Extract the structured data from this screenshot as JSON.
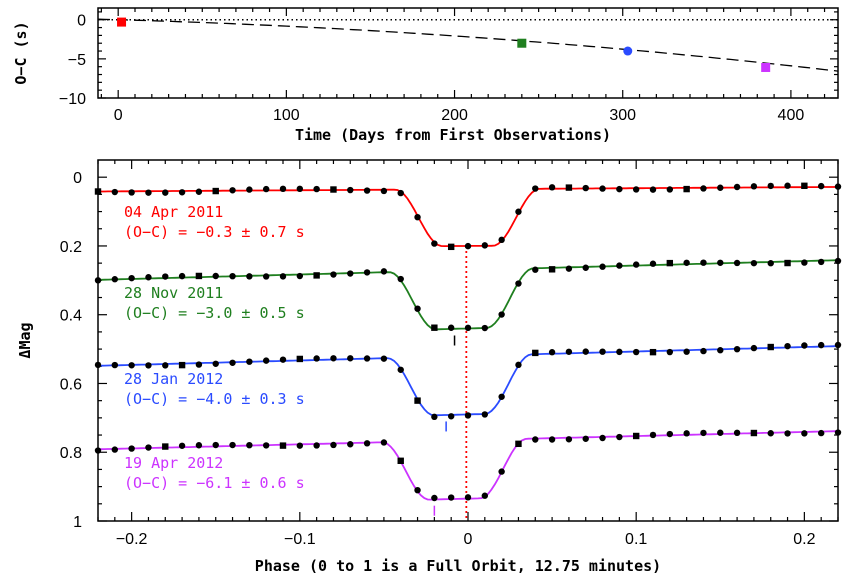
{
  "chart_data": [
    {
      "id": "oc",
      "type": "scatter",
      "xlabel": "Time (Days from First Observations)",
      "ylabel": "O−C (s)",
      "xlim": [
        -12,
        428
      ],
      "ylim": [
        -10,
        1.5
      ],
      "xticks": [
        0,
        100,
        200,
        300,
        400
      ],
      "yticks": [
        0,
        -5,
        -10
      ],
      "xtick_labels": [
        "0",
        "100",
        "200",
        "300",
        "400"
      ],
      "ytick_labels": [
        "0",
        "−5",
        "−10"
      ],
      "zero_line": {
        "y": 0,
        "style": "dotted"
      },
      "trend": {
        "style": "dashed",
        "a": 0.006,
        "b": 2.18e-05
      },
      "points": [
        {
          "x": 2,
          "y": -0.3,
          "color": "#ff0000",
          "marker": "square"
        },
        {
          "x": 240,
          "y": -3.0,
          "color": "#1f7f1f",
          "marker": "square"
        },
        {
          "x": 303,
          "y": -4.0,
          "color": "#2a4bff",
          "marker": "circle"
        },
        {
          "x": 385,
          "y": -6.1,
          "color": "#cc33ff",
          "marker": "square"
        }
      ]
    },
    {
      "id": "lc",
      "type": "line",
      "xlabel": "Phase (0 to 1 is a Full Orbit, 12.75 minutes)",
      "ylabel": "ΔMag",
      "xlim": [
        -0.22,
        0.22
      ],
      "ylim": [
        1.0,
        -0.05
      ],
      "xticks": [
        -0.2,
        -0.1,
        0,
        0.1,
        0.2
      ],
      "yticks": [
        0,
        0.2,
        0.4,
        0.6,
        0.8,
        1
      ],
      "xtick_labels": [
        "−0.2",
        "−0.1",
        "0",
        "0.1",
        "0.2"
      ],
      "ytick_labels": [
        "0",
        "0.2",
        "0.4",
        "0.6",
        "0.8",
        "1"
      ],
      "reference_line": {
        "x": -0.001,
        "color": "#ff0000",
        "style": "dotted"
      },
      "series": [
        {
          "date": "04 Apr 2011",
          "oc_label": "(O−C) = −0.3 ± 0.7 s",
          "color": "#ff0000",
          "baseline": 0.035,
          "depth": 0.165,
          "slope": -0.03,
          "center": -0.0003
        },
        {
          "date": "28 Nov 2011",
          "oc_label": "(O−C) = −3.0 ± 0.5 s",
          "color": "#1f7f1f",
          "baseline": 0.27,
          "depth": 0.17,
          "slope": -0.13,
          "center": -0.004
        },
        {
          "date": "28 Jan 2012",
          "oc_label": "(O−C) = −4.0 ± 0.3 s",
          "color": "#2a4bff",
          "baseline": 0.52,
          "depth": 0.17,
          "slope": -0.13,
          "center": -0.005
        },
        {
          "date": "19 Apr 2012",
          "oc_label": "(O−C) = −6.1 ± 0.6 s",
          "color": "#cc33ff",
          "baseline": 0.765,
          "depth": 0.17,
          "slope": -0.12,
          "center": -0.008
        }
      ]
    }
  ]
}
